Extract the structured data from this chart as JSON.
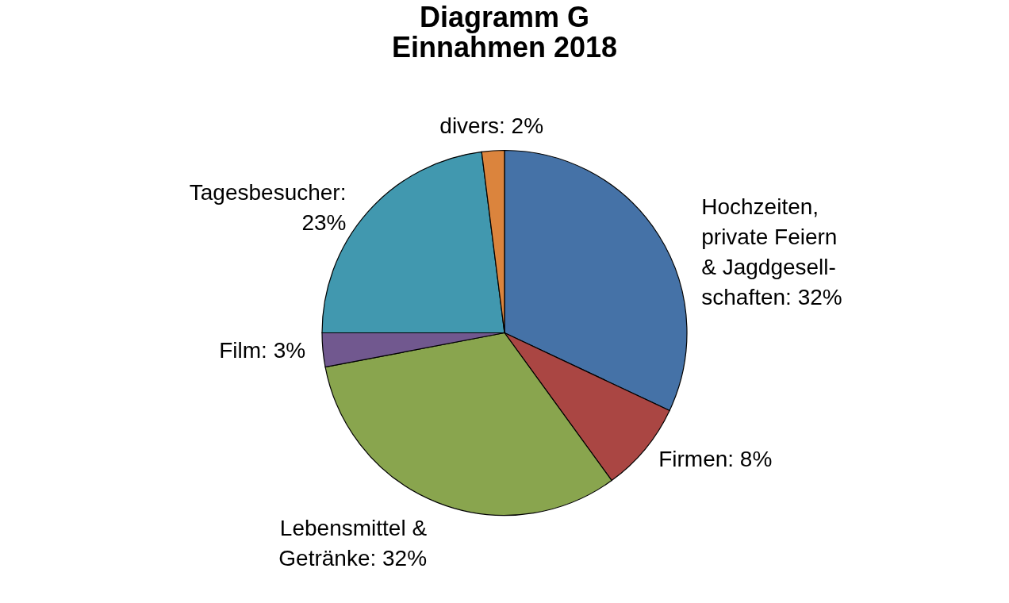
{
  "chart_data": {
    "type": "pie",
    "title": [
      "Diagramm G",
      "Einnahmen 2018"
    ],
    "categories": [
      "Hochzeiten,\nprivate Feiern\n& Jagdgesell-\nschaften: 32%",
      "Firmen: 8%",
      "Lebensmittel &\nGetränke: 32%",
      "Film: 3%",
      "Tagesbesucher:\n23%",
      "divers: 2%"
    ],
    "values": [
      32,
      8,
      32,
      3,
      23,
      2
    ],
    "colors": [
      "#4572a7",
      "#aa4643",
      "#89a54e",
      "#71588f",
      "#4198af",
      "#db843d"
    ],
    "legend": false
  }
}
